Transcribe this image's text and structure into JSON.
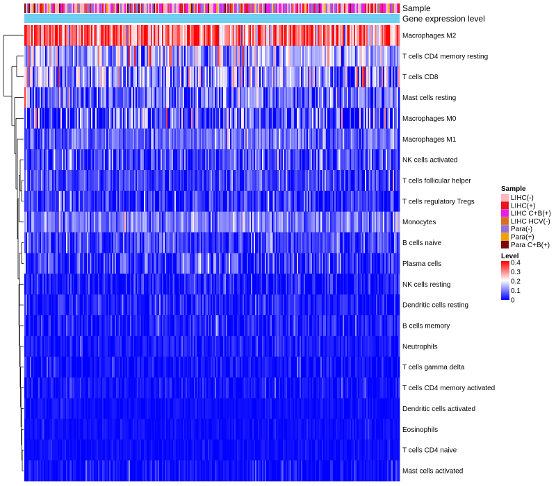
{
  "chart_data": {
    "type": "heatmap",
    "title": "",
    "annotation_rows": [
      "Sample",
      "Gene expression level"
    ],
    "rows": [
      {
        "label": "Macrophages M2",
        "mean": 0.3,
        "spread": 0.09
      },
      {
        "label": "T cells CD4 memory resting",
        "mean": 0.13,
        "spread": 0.07
      },
      {
        "label": "T cells CD8",
        "mean": 0.12,
        "spread": 0.08
      },
      {
        "label": "Mast cells resting",
        "mean": 0.08,
        "spread": 0.06
      },
      {
        "label": "Macrophages M0",
        "mean": 0.06,
        "spread": 0.08
      },
      {
        "label": "Macrophages M1",
        "mean": 0.08,
        "spread": 0.04
      },
      {
        "label": "NK cells activated",
        "mean": 0.05,
        "spread": 0.05
      },
      {
        "label": "T cells follicular helper",
        "mean": 0.05,
        "spread": 0.04
      },
      {
        "label": "T cells regulatory  Tregs",
        "mean": 0.04,
        "spread": 0.04
      },
      {
        "label": "Monocytes",
        "mean": 0.09,
        "spread": 0.04
      },
      {
        "label": "B cells naive",
        "mean": 0.05,
        "spread": 0.04
      },
      {
        "label": "Plasma cells",
        "mean": 0.04,
        "spread": 0.05
      },
      {
        "label": "NK cells resting",
        "mean": 0.02,
        "spread": 0.03
      },
      {
        "label": "Dendritic cells resting",
        "mean": 0.02,
        "spread": 0.03
      },
      {
        "label": "B cells memory",
        "mean": 0.02,
        "spread": 0.03
      },
      {
        "label": "Neutrophils",
        "mean": 0.02,
        "spread": 0.02
      },
      {
        "label": "T cells gamma delta",
        "mean": 0.01,
        "spread": 0.02
      },
      {
        "label": "T cells CD4 memory activated",
        "mean": 0.01,
        "spread": 0.02
      },
      {
        "label": "Dendritic cells activated",
        "mean": 0.01,
        "spread": 0.01
      },
      {
        "label": "Eosinophils",
        "mean": 0.01,
        "spread": 0.01
      },
      {
        "label": "T cells CD4 naive",
        "mean": 0.01,
        "spread": 0.01
      },
      {
        "label": "Mast cells activated",
        "mean": 0.01,
        "spread": 0.02
      }
    ],
    "n_samples": 270,
    "sample_legend": {
      "title": "Sample",
      "entries": [
        {
          "label": "LIHC(-)",
          "color": "#ffb6c1"
        },
        {
          "label": "LIHC(+)",
          "color": "#e8161b"
        },
        {
          "label": "LIHC C+B(+)",
          "color": "#e81ee8"
        },
        {
          "label": "LIHC HCV(-)",
          "color": "#d87020"
        },
        {
          "label": "Para(-)",
          "color": "#9370db"
        },
        {
          "label": "Para(+)",
          "color": "#f0a000"
        },
        {
          "label": "Para C+B(+)",
          "color": "#7a0a0a"
        }
      ]
    },
    "gene_expression_color": "#6ecff0",
    "level_legend": {
      "title": "Level",
      "ticks": [
        "0.4",
        "0.3",
        "0.2",
        "0.1",
        "0"
      ],
      "min": 0,
      "max": 0.4,
      "colors": [
        "#0000ff",
        "#ffffff",
        "#ff0000"
      ]
    }
  }
}
